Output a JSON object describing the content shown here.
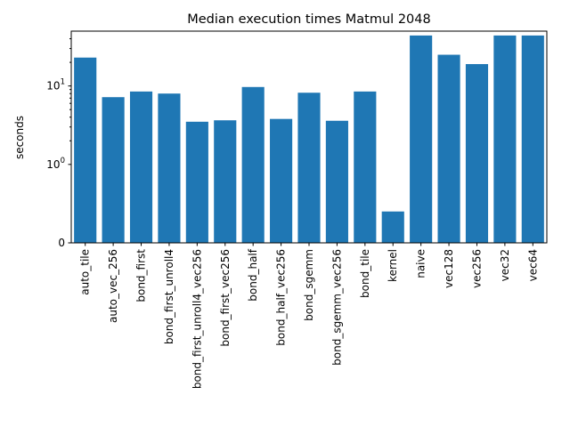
{
  "chart_data": {
    "type": "bar",
    "title": "Median execution times Matmul 2048",
    "xlabel": "",
    "ylabel": "seconds",
    "yscale": "symlog",
    "ylim": [
      0,
      50
    ],
    "yticks": [
      {
        "value": 0,
        "label": "0"
      },
      {
        "value": 1,
        "label": "10^0",
        "base": "10",
        "exp": "0"
      },
      {
        "value": 10,
        "label": "10^1",
        "base": "10",
        "exp": "1"
      }
    ],
    "color": "#1f77b4",
    "grid": false,
    "legend": "none",
    "categories": [
      "auto_tile",
      "auto_vec_256",
      "bond_first",
      "bond_first_unroll4",
      "bond_first_unroll4_vec256",
      "bond_first_vec256",
      "bond_half",
      "bond_half_vec256",
      "bond_sgemm",
      "bond_sgemm_vec256",
      "bond_tile",
      "kernel",
      "naive",
      "vec128",
      "vec256",
      "vec32",
      "vec64"
    ],
    "values": [
      23.0,
      7.2,
      8.5,
      8.0,
      3.5,
      3.65,
      9.7,
      3.8,
      8.2,
      3.6,
      8.5,
      0.4,
      44.0,
      25.0,
      19.0,
      44.0,
      44.0
    ]
  }
}
